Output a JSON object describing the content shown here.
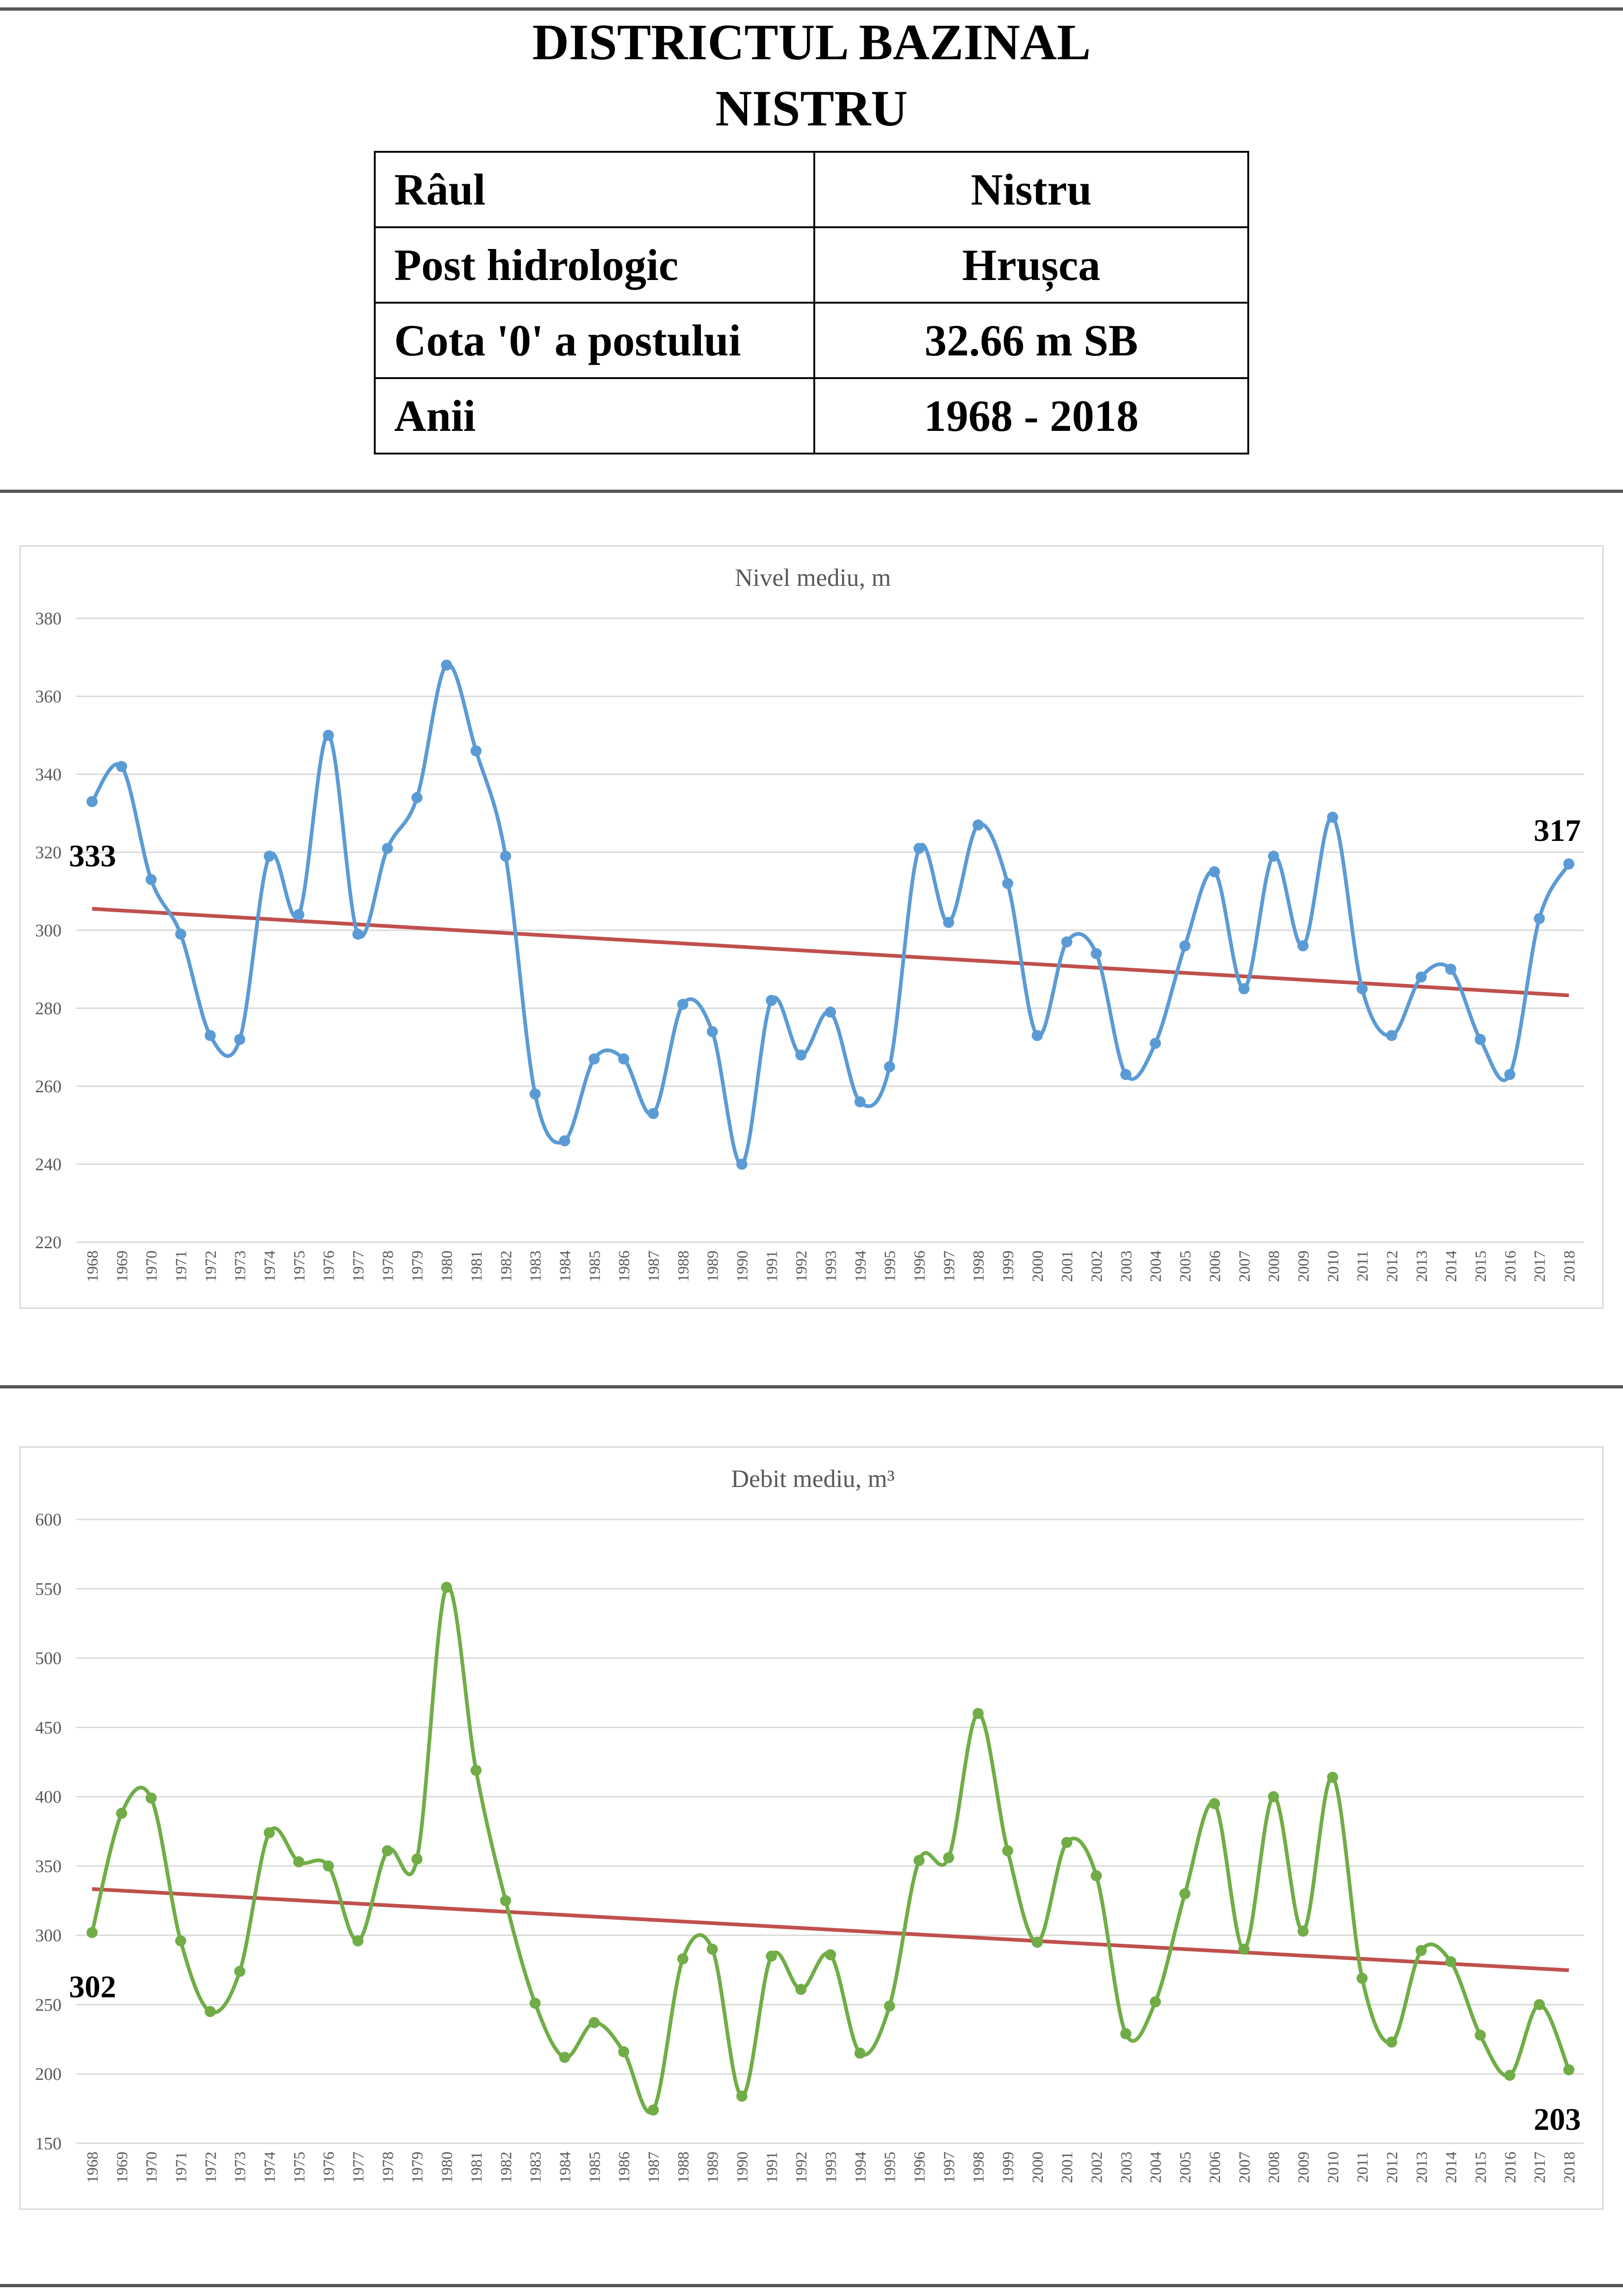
{
  "header": {
    "title_line1": "DISTRICTUL BAZINAL",
    "title_line2": "NISTRU"
  },
  "info_table": [
    {
      "label": "Râul",
      "value": "Nistru"
    },
    {
      "label": "Post hidrologic",
      "value": "Hrușca"
    },
    {
      "label": "Cota '0' a postului",
      "value": "32.66 m SB"
    },
    {
      "label": "Anii",
      "value": "1968 - 2018"
    }
  ],
  "colors": {
    "level_series": "#5b9bd5",
    "discharge_series": "#70ad47",
    "trend": "#c0504d",
    "grid": "#d9d9d9"
  },
  "chart_data": [
    {
      "type": "line",
      "title": "Nivel mediu, m",
      "xlabel": "",
      "ylabel": "",
      "ylim": [
        220,
        380
      ],
      "yticks": [
        220,
        240,
        260,
        280,
        300,
        320,
        340,
        360,
        380
      ],
      "grid": true,
      "legend": "none",
      "categories": [
        "1968",
        "1969",
        "1970",
        "1971",
        "1972",
        "1973",
        "1974",
        "1975",
        "1976",
        "1977",
        "1978",
        "1979",
        "1980",
        "1981",
        "1982",
        "1983",
        "1984",
        "1985",
        "1986",
        "1987",
        "1988",
        "1989",
        "1990",
        "1991",
        "1992",
        "1993",
        "1994",
        "1995",
        "1996",
        "1997",
        "1998",
        "1999",
        "2000",
        "2001",
        "2002",
        "2003",
        "2004",
        "2005",
        "2006",
        "2007",
        "2008",
        "2009",
        "2010",
        "2011",
        "2012",
        "2013",
        "2014",
        "2015",
        "2016",
        "2017",
        "2018"
      ],
      "series": [
        {
          "values": [
            333,
            342,
            313,
            299,
            273,
            272,
            319,
            304,
            350,
            299,
            321,
            334,
            368,
            346,
            319,
            258,
            246,
            267,
            267,
            253,
            281,
            274,
            240,
            282,
            268,
            279,
            256,
            265,
            321,
            302,
            327,
            312,
            273,
            297,
            294,
            263,
            271,
            296,
            315,
            285,
            319,
            296,
            329,
            285,
            273,
            288,
            290,
            272,
            263,
            303,
            317
          ]
        }
      ],
      "trend": {
        "start": 305.5,
        "end": 283.3
      },
      "annotations": [
        {
          "text": "333",
          "index": 0
        },
        {
          "text": "317",
          "index": 50
        }
      ]
    },
    {
      "type": "line",
      "title": "Debit mediu, m³",
      "xlabel": "",
      "ylabel": "",
      "ylim": [
        150,
        600
      ],
      "yticks": [
        150,
        200,
        250,
        300,
        350,
        400,
        450,
        500,
        550,
        600
      ],
      "grid": true,
      "legend": "none",
      "categories": [
        "1968",
        "1969",
        "1970",
        "1971",
        "1972",
        "1973",
        "1974",
        "1975",
        "1976",
        "1977",
        "1978",
        "1979",
        "1980",
        "1981",
        "1982",
        "1983",
        "1984",
        "1985",
        "1986",
        "1987",
        "1988",
        "1989",
        "1990",
        "1991",
        "1992",
        "1993",
        "1994",
        "1995",
        "1996",
        "1997",
        "1998",
        "1999",
        "2000",
        "2001",
        "2002",
        "2003",
        "2004",
        "2005",
        "2006",
        "2007",
        "2008",
        "2009",
        "2010",
        "2011",
        "2012",
        "2013",
        "2014",
        "2015",
        "2016",
        "2017",
        "2018"
      ],
      "series": [
        {
          "values": [
            302,
            388,
            399,
            296,
            245,
            274,
            374,
            353,
            350,
            296,
            361,
            355,
            551,
            419,
            325,
            251,
            212,
            237,
            216,
            174,
            283,
            290,
            184,
            285,
            261,
            286,
            215,
            249,
            354,
            356,
            460,
            361,
            295,
            367,
            343,
            229,
            252,
            330,
            395,
            290,
            400,
            303,
            414,
            269,
            223,
            289,
            281,
            228,
            199,
            250,
            203
          ]
        }
      ],
      "trend": {
        "start": 333.4,
        "end": 274.8
      },
      "annotations": [
        {
          "text": "302",
          "index": 0
        },
        {
          "text": "203",
          "index": 50
        }
      ]
    }
  ]
}
